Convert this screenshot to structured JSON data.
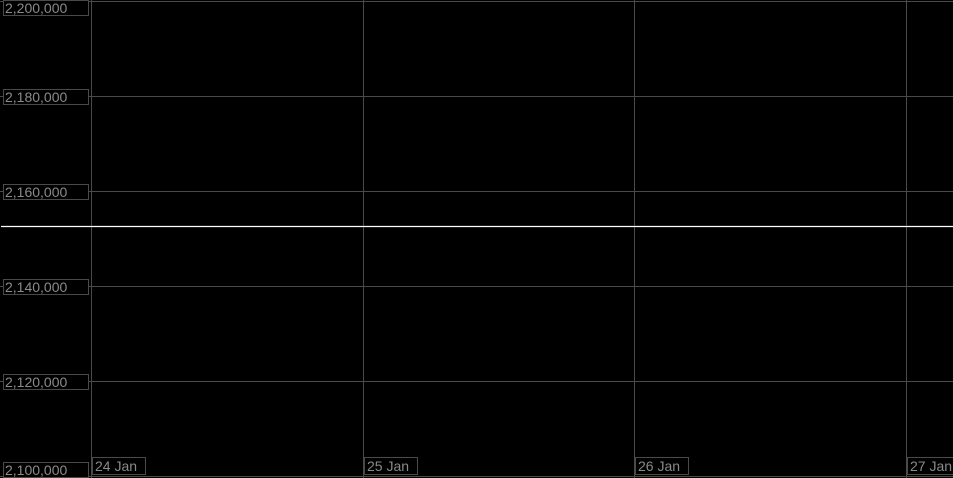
{
  "chart_data": {
    "type": "line",
    "title": "",
    "xlabel": "",
    "ylabel": "",
    "ylim": [
      2100000,
      2200000
    ],
    "y_ticks": [
      2200000,
      2180000,
      2160000,
      2140000,
      2120000,
      2100000
    ],
    "y_tick_labels": [
      "2,200,000",
      "2,180,000",
      "2,160,000",
      "2,140,000",
      "2,120,000",
      "2,100,000"
    ],
    "x_tick_labels": [
      "24 Jan",
      "25 Jan",
      "26 Jan",
      "27 Jan"
    ],
    "grid": true,
    "series": [
      {
        "x": [
          "24 Jan",
          "27 Jan"
        ],
        "y": [
          2152600,
          2152600
        ],
        "color": "#ffffff"
      }
    ],
    "colors": {
      "background": "#000000",
      "grid": "#4a4a4a",
      "labels": "#8a8a8a",
      "line": "#ffffff"
    }
  }
}
